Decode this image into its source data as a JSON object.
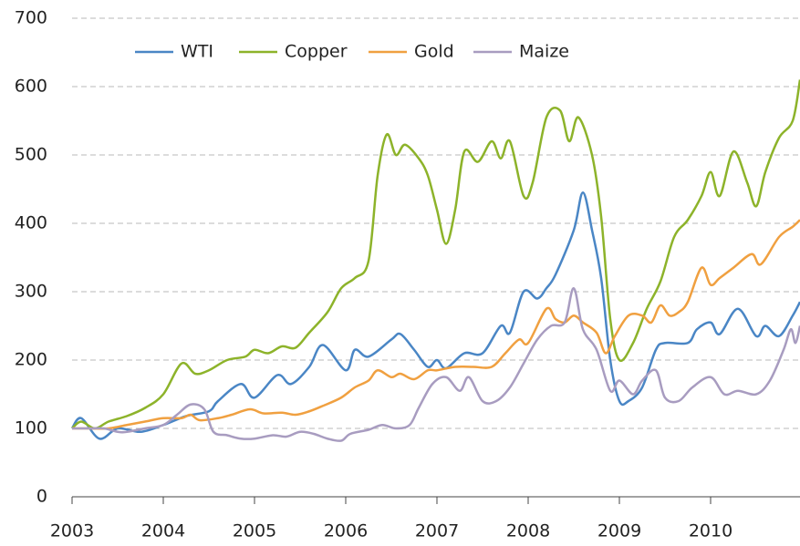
{
  "chart_data": {
    "type": "line",
    "xlim": [
      2003,
      2010.98
    ],
    "xticks": [
      2003,
      2004,
      2005,
      2006,
      2007,
      2008,
      2009,
      2010
    ],
    "ylim": [
      0,
      700
    ],
    "yticks": [
      0,
      100,
      200,
      300,
      400,
      500,
      600,
      700
    ],
    "grid": true,
    "legend": "top",
    "series": [
      {
        "name": "WTI",
        "color": "#4a86c5",
        "x": [
          2003,
          2003.1,
          2003.3,
          2003.5,
          2003.75,
          2004,
          2004.25,
          2004.5,
          2004.6,
          2004.85,
          2005,
          2005.25,
          2005.4,
          2005.6,
          2005.75,
          2006,
          2006.1,
          2006.25,
          2006.5,
          2006.6,
          2006.75,
          2006.9,
          2007,
          2007.1,
          2007.3,
          2007.5,
          2007.7,
          2007.8,
          2007.95,
          2008.1,
          2008.2,
          2008.3,
          2008.5,
          2008.6,
          2008.7,
          2008.8,
          2008.9,
          2009,
          2009.1,
          2009.25,
          2009.4,
          2009.5,
          2009.75,
          2009.85,
          2010,
          2010.1,
          2010.3,
          2010.5,
          2010.6,
          2010.75,
          2010.9,
          2010.98
        ],
        "values": [
          100,
          115,
          85,
          100,
          95,
          105,
          118,
          125,
          140,
          165,
          145,
          178,
          165,
          190,
          222,
          185,
          215,
          205,
          230,
          238,
          215,
          190,
          200,
          188,
          210,
          210,
          250,
          240,
          300,
          290,
          305,
          325,
          390,
          445,
          390,
          320,
          200,
          140,
          140,
          160,
          215,
          225,
          225,
          245,
          255,
          238,
          275,
          235,
          250,
          235,
          265,
          285
        ]
      },
      {
        "name": "Copper",
        "color": "#8db32a",
        "x": [
          2003,
          2003.1,
          2003.25,
          2003.4,
          2003.6,
          2003.8,
          2004,
          2004.2,
          2004.35,
          2004.5,
          2004.7,
          2004.9,
          2005,
          2005.15,
          2005.3,
          2005.45,
          2005.6,
          2005.8,
          2005.95,
          2006.1,
          2006.25,
          2006.35,
          2006.45,
          2006.55,
          2006.65,
          2006.8,
          2006.9,
          2007,
          2007.1,
          2007.2,
          2007.3,
          2007.45,
          2007.6,
          2007.7,
          2007.8,
          2007.95,
          2008.05,
          2008.2,
          2008.35,
          2008.45,
          2008.55,
          2008.7,
          2008.8,
          2008.9,
          2009,
          2009.15,
          2009.3,
          2009.45,
          2009.6,
          2009.75,
          2009.9,
          2010,
          2010.1,
          2010.25,
          2010.4,
          2010.5,
          2010.6,
          2010.75,
          2010.9,
          2010.98
        ],
        "values": [
          100,
          110,
          100,
          110,
          118,
          130,
          150,
          195,
          180,
          185,
          200,
          205,
          215,
          210,
          220,
          218,
          240,
          270,
          305,
          320,
          345,
          470,
          530,
          500,
          515,
          495,
          470,
          420,
          370,
          420,
          505,
          490,
          520,
          495,
          520,
          440,
          460,
          555,
          565,
          520,
          555,
          500,
          410,
          260,
          200,
          225,
          275,
          315,
          380,
          405,
          440,
          475,
          440,
          505,
          460,
          425,
          475,
          525,
          550,
          610
        ]
      },
      {
        "name": "Gold",
        "color": "#f0a040",
        "x": [
          2003,
          2003.2,
          2003.4,
          2003.6,
          2003.8,
          2004,
          2004.2,
          2004.3,
          2004.4,
          2004.6,
          2004.75,
          2004.95,
          2005.1,
          2005.3,
          2005.45,
          2005.6,
          2005.75,
          2005.95,
          2006.1,
          2006.25,
          2006.35,
          2006.5,
          2006.6,
          2006.75,
          2006.9,
          2007,
          2007.2,
          2007.4,
          2007.6,
          2007.75,
          2007.9,
          2008,
          2008.2,
          2008.3,
          2008.4,
          2008.5,
          2008.6,
          2008.75,
          2008.85,
          2008.95,
          2009.1,
          2009.25,
          2009.35,
          2009.45,
          2009.55,
          2009.65,
          2009.75,
          2009.9,
          2010,
          2010.1,
          2010.25,
          2010.45,
          2010.55,
          2010.75,
          2010.9,
          2010.98
        ],
        "values": [
          100,
          100,
          100,
          105,
          110,
          115,
          115,
          120,
          112,
          115,
          120,
          128,
          122,
          123,
          120,
          125,
          133,
          145,
          160,
          170,
          185,
          175,
          180,
          172,
          185,
          185,
          190,
          190,
          190,
          210,
          230,
          225,
          275,
          260,
          255,
          265,
          255,
          240,
          210,
          235,
          265,
          265,
          255,
          280,
          265,
          270,
          285,
          335,
          310,
          320,
          335,
          355,
          340,
          380,
          395,
          405
        ]
      },
      {
        "name": "Maize",
        "color": "#a89cc0",
        "x": [
          2003,
          2003.2,
          2003.35,
          2003.5,
          2003.6,
          2003.8,
          2004,
          2004.15,
          2004.3,
          2004.45,
          2004.55,
          2004.7,
          2004.85,
          2005,
          2005.2,
          2005.35,
          2005.5,
          2005.65,
          2005.8,
          2005.95,
          2006.05,
          2006.25,
          2006.4,
          2006.55,
          2006.7,
          2006.8,
          2006.95,
          2007.1,
          2007.25,
          2007.35,
          2007.5,
          2007.65,
          2007.8,
          2007.95,
          2008.1,
          2008.25,
          2008.4,
          2008.5,
          2008.6,
          2008.75,
          2008.9,
          2009,
          2009.15,
          2009.25,
          2009.4,
          2009.5,
          2009.65,
          2009.8,
          2010,
          2010.15,
          2010.3,
          2010.5,
          2010.65,
          2010.8,
          2010.88,
          2010.93,
          2010.98
        ],
        "values": [
          100,
          100,
          100,
          95,
          95,
          100,
          105,
          120,
          135,
          128,
          95,
          90,
          85,
          85,
          90,
          88,
          95,
          92,
          85,
          82,
          92,
          98,
          105,
          100,
          105,
          130,
          165,
          175,
          155,
          175,
          140,
          140,
          160,
          195,
          230,
          250,
          255,
          305,
          245,
          215,
          155,
          170,
          150,
          170,
          185,
          145,
          140,
          160,
          175,
          150,
          155,
          150,
          170,
          215,
          245,
          225,
          250
        ]
      }
    ]
  }
}
